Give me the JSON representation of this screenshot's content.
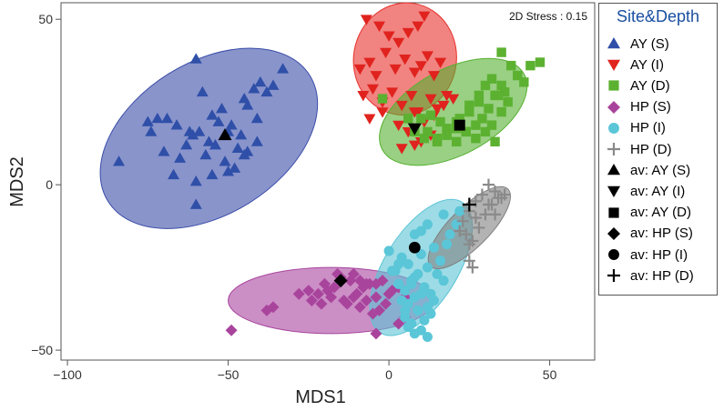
{
  "chart_data": {
    "type": "scatter",
    "xlabel": "MDS1",
    "ylabel": "MDS2",
    "xlim": [
      -102,
      64
    ],
    "ylim": [
      -53,
      55
    ],
    "xticks": [
      -100,
      -50,
      0,
      50
    ],
    "yticks": [
      -50,
      0,
      50
    ],
    "xtick_labels": [
      "−100",
      "−50",
      "0",
      "50"
    ],
    "ytick_labels": [
      "−50",
      "0",
      "50"
    ],
    "annotation": "2D Stress : 0.15",
    "grid": false,
    "legend_title": "Site&Depth",
    "legend_position": "right",
    "ellipses": [
      {
        "group": "AY (S)",
        "cx": -56,
        "cy": 14,
        "rx": 37,
        "ry": 23,
        "angle": 32,
        "color": "#3b4da8"
      },
      {
        "group": "AY (I)",
        "cx": 5,
        "cy": 38,
        "rx": 16,
        "ry": 17,
        "angle": -10,
        "color": "#e8302b"
      },
      {
        "group": "AY (D)",
        "cx": 20,
        "cy": 22,
        "rx": 25,
        "ry": 13,
        "angle": 28,
        "color": "#55b030"
      },
      {
        "group": "HP (S)",
        "cx": -18,
        "cy": -35,
        "rx": 32,
        "ry": 10,
        "angle": 0,
        "color": "#a8449e"
      },
      {
        "group": "HP (I)",
        "cx": 10,
        "cy": -25,
        "rx": 24,
        "ry": 11,
        "angle": 58,
        "color": "#5bc4d6"
      },
      {
        "group": "HP (D)",
        "cx": 25,
        "cy": -13,
        "rx": 17,
        "ry": 6,
        "angle": 45,
        "color": "#808080"
      }
    ],
    "series": [
      {
        "name": "AY (S)",
        "marker": "triangle-up",
        "color": "#2f4fa8",
        "x": [
          -84,
          -60,
          -33,
          -69,
          -58,
          -45,
          -40,
          -72,
          -66,
          -62,
          -55,
          -52,
          -49,
          -46,
          -44,
          -41,
          -38,
          -36,
          -63,
          -59,
          -56,
          -53,
          -50,
          -47,
          -44,
          -41,
          -74,
          -70,
          -65,
          -61,
          -57,
          -54,
          -51,
          -48,
          -45,
          -67,
          -60,
          -55,
          -50,
          -60,
          -75,
          -42
        ],
        "y": [
          7,
          38,
          35,
          20,
          28,
          26,
          31,
          20,
          18,
          16,
          21,
          23,
          18,
          15,
          24,
          20,
          28,
          30,
          12,
          16,
          13,
          19,
          16,
          11,
          10,
          13,
          16,
          10,
          8,
          15,
          9,
          12,
          7,
          5,
          9,
          3,
          1,
          3,
          4,
          -6,
          19,
          29
        ]
      },
      {
        "name": "AY (I)",
        "marker": "triangle-down",
        "color": "#e0231e",
        "x": [
          -7,
          -3,
          0,
          3,
          6,
          9,
          11,
          -9,
          -6,
          -4,
          -1,
          2,
          5,
          8,
          10,
          12,
          14,
          16,
          -8,
          -5,
          -2,
          1,
          4,
          7,
          9,
          13,
          15,
          18,
          -6,
          -2,
          3,
          8,
          11,
          14,
          17,
          20,
          6,
          10,
          13,
          4,
          8
        ],
        "y": [
          50,
          48,
          45,
          43,
          46,
          48,
          51,
          35,
          37,
          33,
          40,
          35,
          38,
          34,
          36,
          39,
          33,
          37,
          27,
          29,
          25,
          28,
          24,
          27,
          22,
          26,
          23,
          27,
          20,
          22,
          18,
          22,
          19,
          21,
          24,
          26,
          16,
          13,
          15,
          11,
          12
        ]
      },
      {
        "name": "AY (D)",
        "marker": "square",
        "color": "#5cb131",
        "x": [
          35,
          38,
          44,
          47,
          40,
          42,
          32,
          35,
          28,
          30,
          33,
          36,
          25,
          28,
          31,
          34,
          37,
          22,
          25,
          29,
          32,
          35,
          18,
          21,
          24,
          27,
          30,
          15,
          18,
          21,
          24,
          27,
          12,
          15,
          18,
          21,
          10,
          13,
          16,
          8,
          6,
          -2,
          11,
          33
        ],
        "y": [
          40,
          36,
          36,
          37,
          33,
          31,
          32,
          30,
          27,
          30,
          27,
          28,
          24,
          25,
          23,
          27,
          25,
          20,
          22,
          20,
          18,
          22,
          17,
          19,
          16,
          18,
          16,
          14,
          15,
          13,
          16,
          14,
          16,
          13,
          15,
          17,
          20,
          21,
          19,
          16,
          20,
          26,
          14,
          13
        ]
      },
      {
        "name": "HP (S)",
        "marker": "diamond",
        "color": "#a9449d",
        "x": [
          -49,
          -38,
          -36,
          -28,
          -25,
          -22,
          -20,
          -18,
          -17,
          -14,
          -12,
          -10,
          -8,
          -6,
          -4,
          -2,
          0,
          1,
          3,
          5,
          -24,
          -21,
          -19,
          -13,
          -11,
          -9,
          -7,
          -5,
          -3,
          -1,
          -16,
          -15,
          -11,
          -9,
          -7,
          -4,
          5,
          -4,
          3
        ],
        "y": [
          -44,
          -38,
          -37,
          -33,
          -32,
          -33,
          -30,
          -34,
          -31,
          -35,
          -29,
          -33,
          -31,
          -30,
          -34,
          -29,
          -33,
          -32,
          -31,
          -34,
          -35,
          -36,
          -32,
          -36,
          -34,
          -37,
          -35,
          -39,
          -38,
          -36,
          -27,
          -28,
          -27,
          -29,
          -30,
          -30,
          -40,
          -45,
          -42
        ]
      },
      {
        "name": "HP (I)",
        "marker": "circle",
        "color": "#5ac6d8",
        "x": [
          0,
          2,
          4,
          6,
          8,
          10,
          12,
          14,
          16,
          18,
          19,
          21,
          3,
          5,
          7,
          9,
          11,
          13,
          15,
          17,
          4,
          6,
          8,
          10,
          12,
          14,
          5,
          7,
          9,
          11,
          13,
          6,
          8,
          10,
          12,
          1,
          3,
          5,
          10,
          8,
          12,
          17,
          22,
          7
        ],
        "y": [
          -20,
          -26,
          -22,
          -24,
          -28,
          -21,
          -25,
          -19,
          -23,
          -18,
          -15,
          -12,
          -30,
          -32,
          -29,
          -27,
          -31,
          -33,
          -27,
          -29,
          -35,
          -36,
          -34,
          -33,
          -37,
          -35,
          -40,
          -42,
          -38,
          -41,
          -39,
          -43,
          -45,
          -44,
          -46,
          -26,
          -24,
          -38,
          -14,
          -15,
          -12,
          -9,
          -8,
          -30
        ]
      },
      {
        "name": "HP (D)",
        "marker": "plus",
        "color": "#8a8a8a",
        "x": [
          31,
          33,
          35,
          29,
          36,
          27,
          32,
          25,
          30,
          34,
          23,
          28,
          33,
          24,
          22,
          26,
          25,
          26,
          25,
          31,
          27
        ],
        "y": [
          0,
          -2,
          -4,
          -3,
          -3,
          -5,
          -6,
          -8,
          -9,
          -4,
          -11,
          -13,
          -9,
          -15,
          -14,
          -17,
          -18,
          -25,
          -23,
          -6,
          -10
        ]
      },
      {
        "name": "av: AY (S)",
        "marker": "triangle-up",
        "color": "#000000",
        "x": [
          -51
        ],
        "y": [
          15
        ]
      },
      {
        "name": "av: AY (I)",
        "marker": "triangle-down",
        "color": "#000000",
        "x": [
          8
        ],
        "y": [
          17
        ]
      },
      {
        "name": "av: AY (D)",
        "marker": "square",
        "color": "#000000",
        "x": [
          22
        ],
        "y": [
          18
        ]
      },
      {
        "name": "av: HP (S)",
        "marker": "diamond",
        "color": "#000000",
        "x": [
          -15
        ],
        "y": [
          -29
        ]
      },
      {
        "name": "av: HP (I)",
        "marker": "circle",
        "color": "#000000",
        "x": [
          8
        ],
        "y": [
          -19
        ]
      },
      {
        "name": "av: HP (D)",
        "marker": "plus",
        "color": "#000000",
        "x": [
          25
        ],
        "y": [
          -6
        ]
      }
    ]
  }
}
